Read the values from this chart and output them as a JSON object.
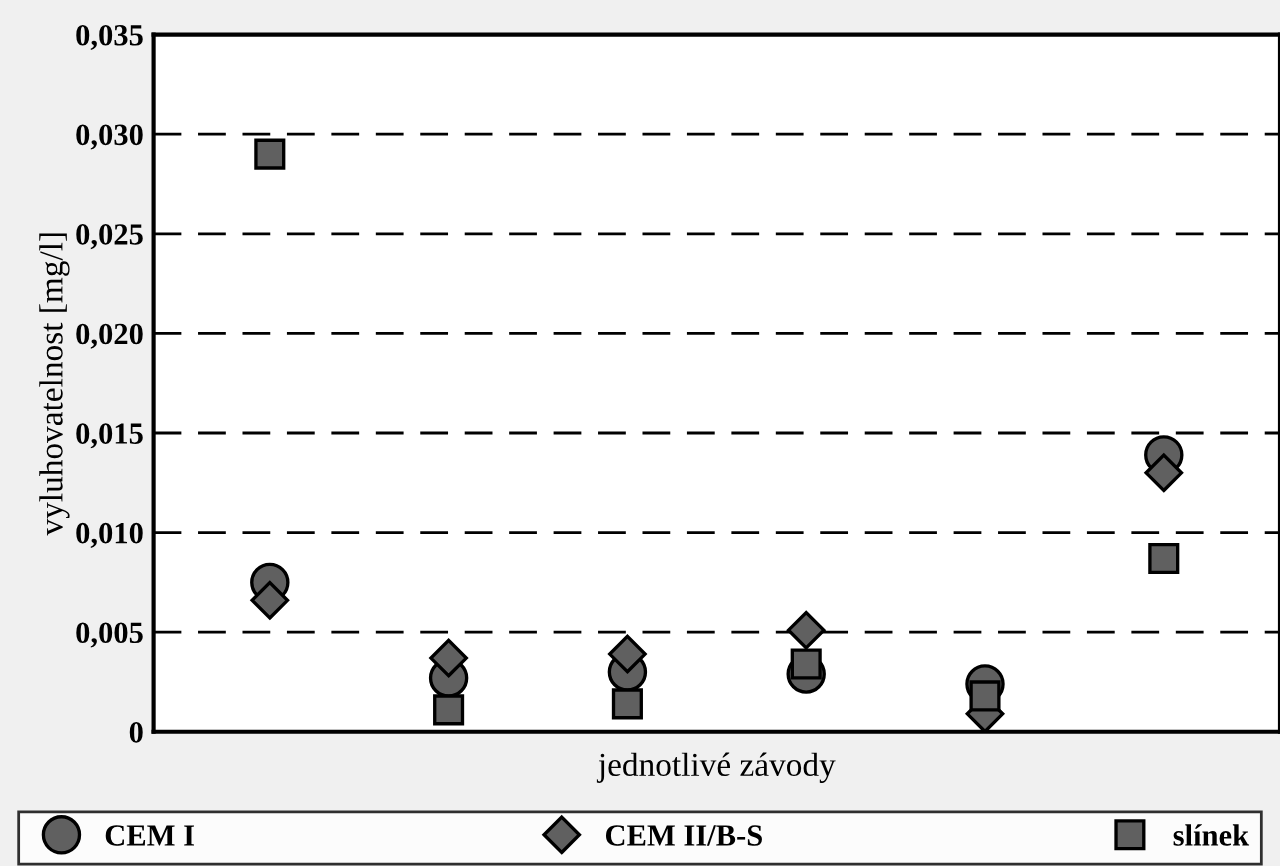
{
  "chart_data": {
    "type": "scatter",
    "xlabel": "jednotlivé závody",
    "ylabel": "vyluhovatelnost [mg/l]",
    "categories": [
      null,
      null,
      null,
      null,
      null,
      null
    ],
    "series": [
      {
        "name": "CEM I",
        "color": "#606060",
        "marker": "circle",
        "values": [
          0.0075,
          0.0027,
          0.003,
          0.0029,
          0.0024,
          0.0139
        ]
      },
      {
        "name": "CEM II/B-S",
        "color": "#606060",
        "marker": "diamond",
        "values": [
          0.0066,
          0.0037,
          0.0039,
          0.0051,
          0.0009,
          0.013
        ]
      },
      {
        "name": "slínek",
        "color": "#606060",
        "marker": "square",
        "values": [
          0.029,
          0.0011,
          0.0014,
          0.0034,
          0.0018,
          0.0087
        ]
      }
    ],
    "ylim": [
      0,
      0.035
    ],
    "yticks": [
      {
        "value": 0,
        "label": "0"
      },
      {
        "value": 0.005,
        "label": "0,005"
      },
      {
        "value": 0.01,
        "label": "0,010"
      },
      {
        "value": 0.015,
        "label": "0,015"
      },
      {
        "value": 0.02,
        "label": "0,020"
      },
      {
        "value": 0.025,
        "label": "0,025"
      },
      {
        "value": 0.03,
        "label": "0,030"
      },
      {
        "value": 0.035,
        "label": "0,035"
      }
    ],
    "grid": "y",
    "line_style": "dashed",
    "legend": "bottom"
  }
}
